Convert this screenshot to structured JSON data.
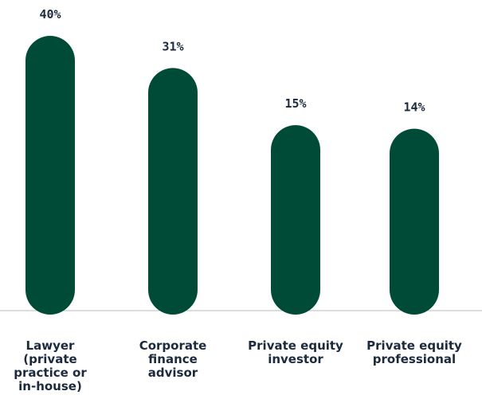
{
  "chart_data": {
    "type": "bar",
    "categories": [
      "Lawyer (private practice or in-house)",
      "Corporate finance advisor",
      "Private equity investor",
      "Private equity professional"
    ],
    "values": [
      40,
      31,
      15,
      14
    ],
    "value_labels": [
      "40%",
      "31%",
      "15%",
      "14%"
    ],
    "color": "#004b37",
    "ylim": [
      -38,
      40
    ]
  }
}
